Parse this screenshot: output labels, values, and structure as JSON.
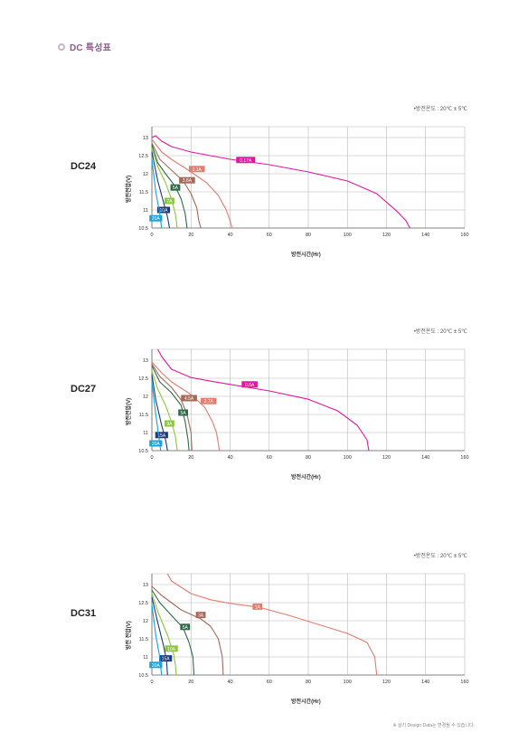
{
  "header": {
    "title": "DC 특성표"
  },
  "temp_note": "•방전온도 : 20℃ ± 5℃",
  "footnote": "※ 상기 Design Data는 변경될 수 있습니다.",
  "colors": {
    "grid": "#b8b8b8",
    "axis": "#666666",
    "magenta": "#e0199c",
    "salmon": "#e47c72",
    "brown": "#a5695a",
    "darkgreen": "#2f6b4a",
    "lime": "#8cc63f",
    "navy": "#1d3a7a",
    "cyan": "#1aa3d9"
  },
  "chart_data": [
    {
      "type": "line",
      "model": "DC24",
      "xlabel": "방전시간(Hr)",
      "ylabel": "방전전압(V)",
      "xlim": [
        0,
        160
      ],
      "ylim": [
        10.5,
        13.3
      ],
      "xticks": [
        0,
        20,
        40,
        60,
        80,
        100,
        120,
        140,
        160
      ],
      "yticks": [
        10.5,
        11,
        11.5,
        12,
        12.5,
        13
      ],
      "series": [
        {
          "name": "0.17A",
          "color": "magenta",
          "labelAt": [
            48,
            12.38
          ],
          "points": [
            [
              0,
              13.0
            ],
            [
              2,
              13.05
            ],
            [
              5,
              12.9
            ],
            [
              10,
              12.75
            ],
            [
              20,
              12.6
            ],
            [
              30,
              12.5
            ],
            [
              40,
              12.4
            ],
            [
              60,
              12.25
            ],
            [
              80,
              12.05
            ],
            [
              100,
              11.8
            ],
            [
              115,
              11.45
            ],
            [
              125,
              10.98
            ],
            [
              130,
              10.7
            ],
            [
              132,
              10.5
            ]
          ]
        },
        {
          "name": "2.1A",
          "color": "salmon",
          "labelAt": [
            23,
            12.13
          ],
          "points": [
            [
              0,
              12.95
            ],
            [
              5,
              12.6
            ],
            [
              10,
              12.4
            ],
            [
              20,
              12.05
            ],
            [
              28,
              11.75
            ],
            [
              34,
              11.4
            ],
            [
              38,
              11.0
            ],
            [
              40,
              10.7
            ],
            [
              41,
              10.5
            ]
          ]
        },
        {
          "name": "3.8A",
          "color": "brown",
          "labelAt": [
            18,
            11.82
          ],
          "points": [
            [
              0,
              12.85
            ],
            [
              4,
              12.4
            ],
            [
              10,
              12.1
            ],
            [
              16,
              11.8
            ],
            [
              20,
              11.45
            ],
            [
              23,
              11.05
            ],
            [
              24,
              10.7
            ],
            [
              25,
              10.5
            ]
          ]
        },
        {
          "name": "5A",
          "color": "darkgreen",
          "labelAt": [
            12,
            11.62
          ],
          "points": [
            [
              0,
              12.8
            ],
            [
              3,
              12.3
            ],
            [
              7,
              12.0
            ],
            [
              12,
              11.65
            ],
            [
              15,
              11.3
            ],
            [
              17,
              10.9
            ],
            [
              18,
              10.5
            ]
          ]
        },
        {
          "name": "7A",
          "color": "lime",
          "labelAt": [
            9,
            11.25
          ],
          "points": [
            [
              0,
              12.7
            ],
            [
              3,
              12.2
            ],
            [
              7,
              11.75
            ],
            [
              10,
              11.3
            ],
            [
              12,
              10.9
            ],
            [
              13,
              10.5
            ]
          ]
        },
        {
          "name": "10A",
          "color": "navy",
          "labelAt": [
            6,
            11.0
          ],
          "points": [
            [
              0,
              12.6
            ],
            [
              3,
              11.8
            ],
            [
              6,
              11.2
            ],
            [
              8,
              10.8
            ],
            [
              9,
              10.5
            ]
          ]
        },
        {
          "name": "20A",
          "color": "cyan",
          "labelAt": [
            2,
            10.77
          ],
          "points": [
            [
              0,
              12.4
            ],
            [
              2,
              11.5
            ],
            [
              4,
              10.9
            ],
            [
              5,
              10.5
            ]
          ]
        }
      ]
    },
    {
      "type": "line",
      "model": "DC27",
      "xlabel": "방전시간(Hr)",
      "ylabel": "방전전압(V)",
      "xlim": [
        0,
        160
      ],
      "ylim": [
        10.5,
        13.3
      ],
      "xticks": [
        0,
        20,
        40,
        60,
        80,
        100,
        120,
        140,
        160
      ],
      "yticks": [
        10.5,
        11,
        11.5,
        12,
        12.5,
        13
      ],
      "series": [
        {
          "name": "0.6A",
          "color": "magenta",
          "labelAt": [
            50,
            12.33
          ],
          "points": [
            [
              3,
              13.3
            ],
            [
              5,
              13.1
            ],
            [
              10,
              12.75
            ],
            [
              20,
              12.52
            ],
            [
              30,
              12.42
            ],
            [
              40,
              12.33
            ],
            [
              60,
              12.15
            ],
            [
              80,
              11.92
            ],
            [
              95,
              11.6
            ],
            [
              105,
              11.2
            ],
            [
              110,
              10.8
            ],
            [
              111,
              10.5
            ]
          ]
        },
        {
          "name": "2.7A",
          "color": "salmon",
          "labelAt": [
            29,
            11.87
          ],
          "points": [
            [
              0,
              12.95
            ],
            [
              5,
              12.65
            ],
            [
              10,
              12.4
            ],
            [
              20,
              12.05
            ],
            [
              27,
              11.7
            ],
            [
              31,
              11.3
            ],
            [
              33,
              11.0
            ],
            [
              34,
              10.7
            ],
            [
              34.5,
              10.5
            ]
          ]
        },
        {
          "name": "4.5A",
          "color": "brown",
          "labelAt": [
            19,
            11.95
          ],
          "points": [
            [
              0,
              12.9
            ],
            [
              4,
              12.55
            ],
            [
              10,
              12.25
            ],
            [
              15,
              11.9
            ],
            [
              18,
              11.5
            ],
            [
              20,
              11.0
            ],
            [
              20.5,
              10.5
            ]
          ]
        },
        {
          "name": "5A",
          "color": "darkgreen",
          "labelAt": [
            16,
            11.55
          ],
          "points": [
            [
              0,
              12.85
            ],
            [
              4,
              12.4
            ],
            [
              10,
              12.1
            ],
            [
              15,
              11.75
            ],
            [
              17,
              11.3
            ],
            [
              18.5,
              10.8
            ],
            [
              19,
              10.5
            ]
          ]
        },
        {
          "name": "9A",
          "color": "lime",
          "labelAt": [
            9,
            11.25
          ],
          "points": [
            [
              0,
              12.7
            ],
            [
              3,
              12.2
            ],
            [
              7,
              11.75
            ],
            [
              10,
              11.3
            ],
            [
              12,
              10.9
            ],
            [
              13,
              10.5
            ]
          ]
        },
        {
          "name": "15A",
          "color": "navy",
          "labelAt": [
            5,
            10.93
          ],
          "points": [
            [
              0,
              12.6
            ],
            [
              2,
              11.9
            ],
            [
              5,
              11.2
            ],
            [
              7,
              10.8
            ],
            [
              8,
              10.5
            ]
          ]
        },
        {
          "name": "20A",
          "color": "cyan",
          "labelAt": [
            2,
            10.7
          ],
          "points": [
            [
              0,
              12.4
            ],
            [
              2,
              11.5
            ],
            [
              3.5,
              10.9
            ],
            [
              4.5,
              10.5
            ]
          ]
        }
      ]
    },
    {
      "type": "line",
      "model": "DC31",
      "xlabel": "방전시간(Hr)",
      "ylabel": "방전 전압(V)",
      "xlim": [
        0,
        160
      ],
      "ylim": [
        10.5,
        13.3
      ],
      "xticks": [
        0,
        20,
        40,
        60,
        80,
        100,
        120,
        140,
        160
      ],
      "yticks": [
        10.5,
        11,
        11.5,
        12,
        12.5,
        13
      ],
      "series": [
        {
          "name": "1A",
          "color": "salmon",
          "labelAt": [
            54,
            12.39
          ],
          "points": [
            [
              8,
              13.3
            ],
            [
              10,
              13.1
            ],
            [
              20,
              12.75
            ],
            [
              30,
              12.58
            ],
            [
              40,
              12.48
            ],
            [
              55,
              12.37
            ],
            [
              70,
              12.15
            ],
            [
              85,
              11.9
            ],
            [
              100,
              11.65
            ],
            [
              110,
              11.4
            ],
            [
              114,
              11.0
            ],
            [
              115,
              10.5
            ]
          ]
        },
        {
          "name": "3A",
          "color": "brown",
          "labelAt": [
            25,
            12.16
          ],
          "points": [
            [
              0,
              12.95
            ],
            [
              5,
              12.7
            ],
            [
              15,
              12.3
            ],
            [
              25,
              12.05
            ],
            [
              30,
              11.85
            ],
            [
              34,
              11.5
            ],
            [
              36,
              11.0
            ],
            [
              36.5,
              10.5
            ]
          ]
        },
        {
          "name": "5A",
          "color": "darkgreen",
          "labelAt": [
            17,
            11.83
          ],
          "points": [
            [
              0,
              12.85
            ],
            [
              4,
              12.5
            ],
            [
              10,
              12.15
            ],
            [
              16,
              11.8
            ],
            [
              19,
              11.4
            ],
            [
              21,
              11.0
            ],
            [
              21.5,
              10.5
            ]
          ]
        },
        {
          "name": "10A",
          "color": "lime",
          "labelAt": [
            10,
            11.23
          ],
          "points": [
            [
              0,
              12.75
            ],
            [
              3,
              12.25
            ],
            [
              8,
              11.6
            ],
            [
              11,
              11.1
            ],
            [
              12,
              10.8
            ],
            [
              12.5,
              10.5
            ]
          ]
        },
        {
          "name": "15A",
          "color": "navy",
          "labelAt": [
            7,
            10.96
          ],
          "points": [
            [
              0,
              12.65
            ],
            [
              3,
              11.95
            ],
            [
              6,
              11.3
            ],
            [
              7.5,
              10.9
            ],
            [
              8,
              10.5
            ]
          ]
        },
        {
          "name": "20A",
          "color": "cyan",
          "labelAt": [
            2,
            10.78
          ],
          "points": [
            [
              0,
              12.45
            ],
            [
              2,
              11.6
            ],
            [
              4,
              11.0
            ],
            [
              5,
              10.5
            ]
          ]
        }
      ]
    }
  ]
}
